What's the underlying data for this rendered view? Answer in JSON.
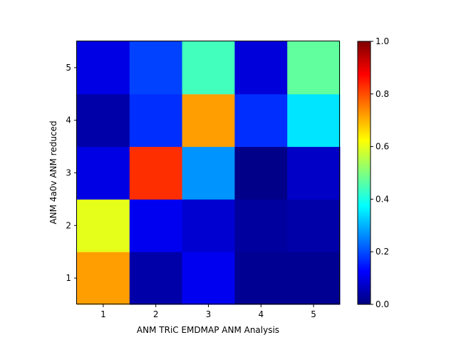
{
  "chart_data": {
    "type": "heatmap",
    "title": "",
    "xlabel": "ANM TRiC EMDMAP ANM Analysis",
    "ylabel": "ANM 4a0v ANM reduced",
    "x_categories": [
      "1",
      "2",
      "3",
      "4",
      "5"
    ],
    "y_categories": [
      "1",
      "2",
      "3",
      "4",
      "5"
    ],
    "rows": [
      {
        "y": "1",
        "values": [
          0.72,
          0.04,
          0.11,
          0.02,
          0.02
        ]
      },
      {
        "y": "2",
        "values": [
          0.6,
          0.11,
          0.08,
          0.03,
          0.04
        ]
      },
      {
        "y": "3",
        "values": [
          0.1,
          0.83,
          0.27,
          0.01,
          0.07
        ]
      },
      {
        "y": "4",
        "values": [
          0.04,
          0.17,
          0.72,
          0.17,
          0.35
        ]
      },
      {
        "y": "5",
        "values": [
          0.1,
          0.19,
          0.44,
          0.09,
          0.47
        ]
      }
    ],
    "colormap": "jet",
    "vmin": 0.0,
    "vmax": 1.0,
    "colorbar_ticks": [
      "0.0",
      "0.2",
      "0.4",
      "0.6",
      "0.8",
      "1.0"
    ],
    "grid": false
  }
}
